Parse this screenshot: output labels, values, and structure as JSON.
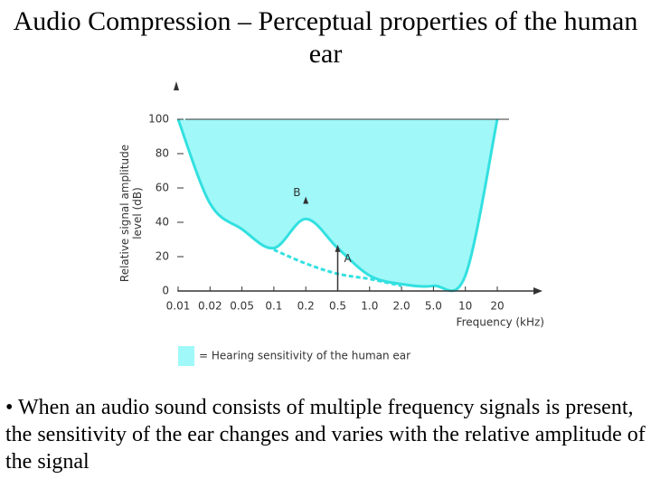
{
  "slide": {
    "title": "Audio Compression – Perceptual properties of the human ear",
    "bullet": "• When an audio sound consists of multiple frequency signals is present, the sensitivity of the ear changes and varies with the relative amplitude of the signal"
  },
  "chart_data": {
    "type": "area",
    "xlabel": "Frequency (kHz)",
    "ylabel": "Relative signal amplitude level (dB)",
    "categories": [
      "0.01",
      "0.02",
      "0.05",
      "0.1",
      "0.2",
      "0.5",
      "1.0",
      "2.0",
      "5.0",
      "10",
      "20"
    ],
    "ylim": [
      0,
      100
    ],
    "yticks": [
      0,
      20,
      40,
      60,
      80,
      100
    ],
    "series": [
      {
        "name": "= Hearing sensitivity of the human ear",
        "color": "#33e0e0",
        "fill": "#a0f8f8",
        "values": [
          100,
          51,
          36,
          25,
          42,
          25,
          9,
          4,
          3,
          9,
          100
        ]
      },
      {
        "color": "#33e0e0",
        "dashed": true,
        "values": [
          null,
          null,
          null,
          24,
          16,
          10,
          7,
          3,
          null,
          null,
          null
        ]
      }
    ],
    "annotations": [
      {
        "text": "A",
        "category": 5,
        "value": 27
      },
      {
        "text": "B",
        "category": 4,
        "value": 55
      }
    ]
  }
}
